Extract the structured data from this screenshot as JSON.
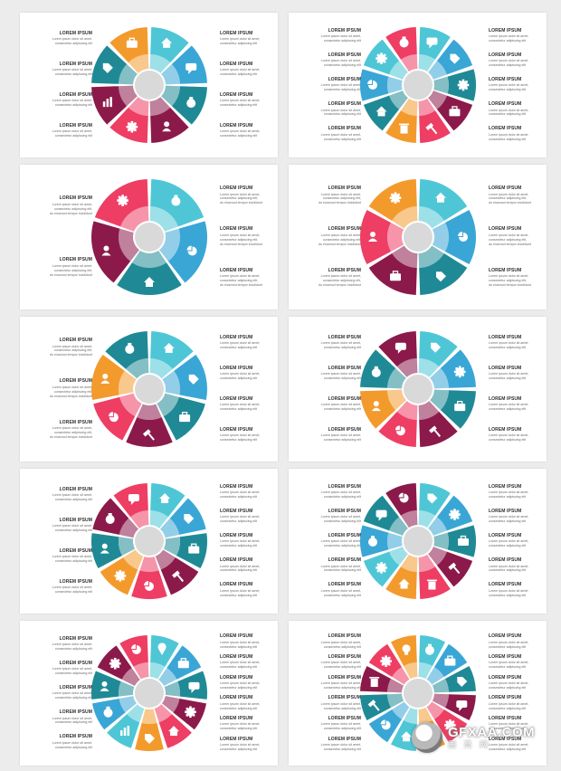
{
  "palette": {
    "c1": "#4ec6d6",
    "c2": "#3aa6d6",
    "c3": "#1f8a96",
    "c4": "#8b1a4a",
    "c5": "#ee3e64",
    "c6": "#f39a2d",
    "c7": "#1e6f8f",
    "center": "#d9d9d9"
  },
  "item_title": "LOREM IPSUM",
  "item_text": [
    "Lorem ipsum dolor sit amet,",
    "consectetur adipiscing elit"
  ],
  "item_text_long": [
    "Lorem ipsum dolor sit amet,",
    "consectetur adipiscing elit,",
    "do eiusmod tempor incididunt"
  ],
  "slides": [
    {
      "segments": 8,
      "left_items": 4,
      "right_items": 4,
      "colors": [
        "c1",
        "c2",
        "c3",
        "c4",
        "c5",
        "c4",
        "c3",
        "c6"
      ],
      "icons": [
        "home-icon",
        "chat-icon",
        "money-bag-icon",
        "user-icon",
        "gear-icon",
        "chart-icon",
        "tag-icon",
        "briefcase-icon"
      ]
    },
    {
      "segments": 10,
      "left_items": 5,
      "right_items": 5,
      "colors": [
        "c1",
        "c2",
        "c3",
        "c4",
        "c5",
        "c6",
        "c3",
        "c2",
        "c1",
        "c5"
      ],
      "icons": [
        "chat-icon",
        "tag-icon",
        "gear-icon",
        "briefcase-icon",
        "hammer-icon",
        "bin-icon",
        "home-icon",
        "pie-icon",
        "gear-icon",
        "money-bag-icon"
      ]
    },
    {
      "segments": 5,
      "left_items": 2,
      "right_items": 3,
      "colors": [
        "c1",
        "c2",
        "c3",
        "c4",
        "c5"
      ],
      "icons": [
        "money-bag-icon",
        "pie-icon",
        "home-icon",
        "user-icon",
        "gear-icon"
      ]
    },
    {
      "segments": 6,
      "left_items": 3,
      "right_items": 3,
      "colors": [
        "c1",
        "c2",
        "c3",
        "c4",
        "c5",
        "c6"
      ],
      "icons": [
        "home-icon",
        "pie-icon",
        "tag-icon",
        "briefcase-icon",
        "user-icon",
        "gear-icon"
      ]
    },
    {
      "segments": 7,
      "left_items": 3,
      "right_items": 4,
      "colors": [
        "c1",
        "c2",
        "c3",
        "c4",
        "c5",
        "c6",
        "c3"
      ],
      "icons": [
        "home-icon",
        "tag-icon",
        "briefcase-icon",
        "hammer-icon",
        "pie-icon",
        "user-icon",
        "money-bag-icon"
      ]
    },
    {
      "segments": 8,
      "left_items": 4,
      "right_items": 4,
      "colors": [
        "c1",
        "c2",
        "c3",
        "c4",
        "c5",
        "c6",
        "c3",
        "c4"
      ],
      "icons": [
        "tag-icon",
        "gear-icon",
        "briefcase-icon",
        "hammer-icon",
        "pie-icon",
        "user-icon",
        "money-bag-icon",
        "chat-icon"
      ]
    },
    {
      "segments": 9,
      "left_items": 4,
      "right_items": 5,
      "colors": [
        "c1",
        "c2",
        "c3",
        "c4",
        "c5",
        "c6",
        "c3",
        "c4",
        "c5"
      ],
      "icons": [
        "home-icon",
        "tag-icon",
        "briefcase-icon",
        "hammer-icon",
        "pie-icon",
        "gear-icon",
        "user-icon",
        "money-bag-icon",
        "chat-icon"
      ]
    },
    {
      "segments": 10,
      "left_items": 5,
      "right_items": 5,
      "colors": [
        "c1",
        "c2",
        "c3",
        "c4",
        "c5",
        "c6",
        "c1",
        "c2",
        "c3",
        "c4"
      ],
      "icons": [
        "tag-icon",
        "gear-icon",
        "briefcase-icon",
        "hammer-icon",
        "bin-icon",
        "home-icon",
        "gear-icon",
        "money-bag-icon",
        "chat-icon",
        "pie-icon"
      ]
    },
    {
      "segments": 11,
      "left_items": 5,
      "right_items": 6,
      "colors": [
        "c1",
        "c2",
        "c3",
        "c4",
        "c5",
        "c6",
        "c1",
        "c2",
        "c3",
        "c4",
        "c5"
      ],
      "icons": [
        "pin-icon",
        "briefcase-icon",
        "chat-icon",
        "gear-icon",
        "home-icon",
        "tag-icon",
        "chart-icon",
        "money-bag-icon",
        "user-icon",
        "gear-icon",
        "pie-icon"
      ]
    },
    {
      "segments": 12,
      "left_items": 6,
      "right_items": 6,
      "colors": [
        "c1",
        "c2",
        "c3",
        "c4",
        "c5",
        "c6",
        "c1",
        "c2",
        "c3",
        "c4",
        "c5",
        "c6"
      ],
      "icons": [
        "money-bag-icon",
        "briefcase-icon",
        "tag-icon",
        "chat-icon",
        "gear-icon",
        "user-icon",
        "home-icon",
        "pie-icon",
        "hammer-icon",
        "bin-icon",
        "gear-icon",
        "bulb-icon"
      ]
    }
  ],
  "watermark": {
    "main": "GFXAA.COM",
    "sub": "图 亮 网"
  }
}
